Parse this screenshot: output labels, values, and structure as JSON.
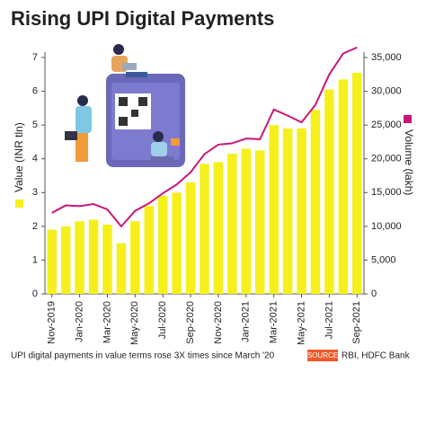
{
  "chart_data": {
    "type": "bar-line",
    "title": "Rising UPI Digital Payments",
    "categories": [
      "Nov-2019",
      null,
      "Jan-2020",
      null,
      "Mar-2020",
      null,
      "May-2020",
      null,
      "Jul-2020",
      null,
      "Sep-2020",
      null,
      "Nov-2020",
      null,
      "Jan-2021",
      null,
      "Mar-2021",
      null,
      "May-2021",
      null,
      "Jul-2021",
      null,
      "Sep-2021"
    ],
    "series": [
      {
        "name": "Value (INR tln)",
        "type": "bar",
        "color": "#f5f01c",
        "values": [
          1.9,
          2.0,
          2.15,
          2.2,
          2.05,
          1.5,
          2.15,
          2.6,
          2.9,
          3.0,
          3.3,
          3.85,
          3.9,
          4.15,
          4.3,
          4.25,
          5.0,
          4.9,
          4.9,
          5.45,
          6.05,
          6.35,
          6.55
        ]
      },
      {
        "name": "Volume (lakh)",
        "type": "line",
        "axis": "y2",
        "color": "#c8177a",
        "values": [
          12000,
          13100,
          13000,
          13300,
          12500,
          10000,
          12300,
          13400,
          14900,
          16200,
          18000,
          20700,
          22100,
          22300,
          23000,
          22900,
          27300,
          26400,
          25400,
          28000,
          32500,
          35600,
          36500
        ]
      }
    ],
    "ylim": [
      0,
      7
    ],
    "yticks": [
      0,
      1,
      2,
      3,
      4,
      5,
      6,
      7
    ],
    "y2lim": [
      0,
      35000
    ],
    "y2ticks": [
      0,
      {
        "value": 5000,
        "label": "5,000"
      },
      {
        "value": 10000,
        "label": "10,000"
      },
      {
        "value": 15000,
        "label": "15,000"
      },
      {
        "value": 20000,
        "label": "20,000"
      },
      {
        "value": 25000,
        "label": "25,000"
      },
      {
        "value": 30000,
        "label": "30,000"
      },
      {
        "value": 35000,
        "label": "35,000"
      }
    ],
    "note": "UPI digital payments in value terms rose 3X times since March '20",
    "source_tag": "SOURCE",
    "source": "RBI, HDFC Bank"
  }
}
